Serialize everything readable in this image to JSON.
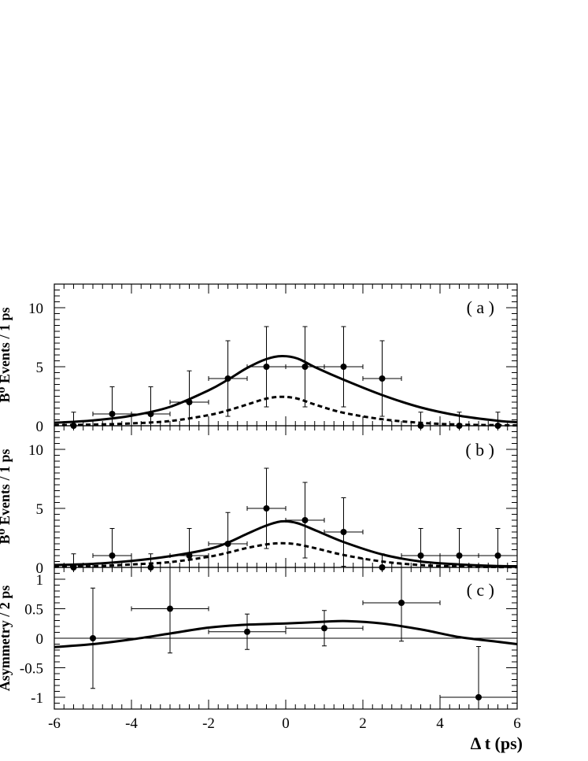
{
  "chart_data": [
    {
      "type": "scatter",
      "panel_label": "( a )",
      "ylabel": "B⁰ Events / 1 ps",
      "xlim": [
        -6,
        6
      ],
      "ylim": [
        0,
        12
      ],
      "yticks": [
        "0",
        "5",
        "10"
      ],
      "points": [
        {
          "x": -5.5,
          "y": 0,
          "xerr": 0.5,
          "yerr": 1.15
        },
        {
          "x": -4.5,
          "y": 1,
          "xerr": 0.5,
          "yerr": 2.3
        },
        {
          "x": -3.5,
          "y": 1,
          "xerr": 0.5,
          "yerr": 2.3
        },
        {
          "x": -2.5,
          "y": 2,
          "xerr": 0.5,
          "yerr": 2.65
        },
        {
          "x": -1.5,
          "y": 4,
          "xerr": 0.5,
          "yerr": 3.2
        },
        {
          "x": -0.5,
          "y": 5,
          "xerr": 0.5,
          "yerr": 3.4
        },
        {
          "x": 0.5,
          "y": 5,
          "xerr": 0.5,
          "yerr": 3.4
        },
        {
          "x": 1.5,
          "y": 5,
          "xerr": 0.5,
          "yerr": 3.4
        },
        {
          "x": 2.5,
          "y": 4,
          "xerr": 0.5,
          "yerr": 3.2
        },
        {
          "x": 3.5,
          "y": 0,
          "xerr": 0.5,
          "yerr": 1.15
        },
        {
          "x": 4.5,
          "y": 0,
          "xerr": 0.5,
          "yerr": 1.15
        },
        {
          "x": 5.5,
          "y": 0,
          "xerr": 0.5,
          "yerr": 1.15
        }
      ],
      "solid_curve": {
        "x": [
          -6,
          -5,
          -4,
          -3,
          -2,
          -1.5,
          -1,
          -0.5,
          -0.1,
          0.3,
          0.8,
          1.5,
          2.5,
          3.5,
          4.5,
          5.5,
          6
        ],
        "y": [
          0.25,
          0.45,
          0.85,
          1.6,
          3.0,
          3.9,
          4.9,
          5.65,
          5.9,
          5.7,
          4.9,
          3.9,
          2.6,
          1.55,
          0.85,
          0.42,
          0.3
        ]
      },
      "dashed_curve": {
        "x": [
          -6,
          -5,
          -4,
          -3,
          -2,
          -1.5,
          -1,
          -0.5,
          -0.1,
          0.3,
          0.8,
          1.5,
          2.5,
          3.5,
          4.5,
          5.5,
          6
        ],
        "y": [
          0.05,
          0.1,
          0.2,
          0.4,
          0.9,
          1.3,
          1.8,
          2.3,
          2.45,
          2.3,
          1.75,
          1.1,
          0.55,
          0.25,
          0.1,
          0.05,
          0.03
        ]
      }
    },
    {
      "type": "scatter",
      "panel_label": "( b )",
      "ylabel": "B̄⁰ Events / 1 ps",
      "xlim": [
        -6,
        6
      ],
      "ylim": [
        0,
        12
      ],
      "yticks": [
        "0",
        "5",
        "10"
      ],
      "points": [
        {
          "x": -5.5,
          "y": 0,
          "xerr": 0.5,
          "yerr": 1.15
        },
        {
          "x": -4.5,
          "y": 1,
          "xerr": 0.5,
          "yerr": 2.3
        },
        {
          "x": -3.5,
          "y": 0,
          "xerr": 0.5,
          "yerr": 1.15
        },
        {
          "x": -2.5,
          "y": 1,
          "xerr": 0.5,
          "yerr": 2.3
        },
        {
          "x": -1.5,
          "y": 2,
          "xerr": 0.5,
          "yerr": 2.65
        },
        {
          "x": -0.5,
          "y": 5,
          "xerr": 0.5,
          "yerr": 3.4
        },
        {
          "x": 0.5,
          "y": 4,
          "xerr": 0.5,
          "yerr": 3.2
        },
        {
          "x": 1.5,
          "y": 3,
          "xerr": 0.5,
          "yerr": 2.9
        },
        {
          "x": 2.5,
          "y": 0,
          "xerr": 0.5,
          "yerr": 1.15
        },
        {
          "x": 3.5,
          "y": 1,
          "xerr": 0.5,
          "yerr": 2.3
        },
        {
          "x": 4.5,
          "y": 1,
          "xerr": 0.5,
          "yerr": 2.3
        },
        {
          "x": 5.5,
          "y": 1,
          "xerr": 0.5,
          "yerr": 2.3
        }
      ],
      "solid_curve": {
        "x": [
          -6,
          -5,
          -4,
          -3,
          -2,
          -1.5,
          -1,
          -0.5,
          -0.1,
          0.3,
          0.8,
          1.5,
          2.5,
          3.5,
          4.5,
          5.5,
          6
        ],
        "y": [
          0.2,
          0.3,
          0.55,
          0.95,
          1.55,
          2.1,
          2.85,
          3.55,
          3.9,
          3.75,
          3.1,
          2.15,
          1.1,
          0.5,
          0.25,
          0.12,
          0.1
        ]
      },
      "dashed_curve": {
        "x": [
          -6,
          -5,
          -4,
          -3,
          -2,
          -1.5,
          -1,
          -0.5,
          -0.1,
          0.3,
          0.8,
          1.5,
          2.5,
          3.5,
          4.5,
          5.5,
          6
        ],
        "y": [
          0.05,
          0.1,
          0.25,
          0.45,
          0.9,
          1.25,
          1.65,
          1.95,
          2.05,
          1.95,
          1.6,
          1.05,
          0.5,
          0.2,
          0.08,
          0.03,
          0.02
        ]
      }
    },
    {
      "type": "scatter",
      "panel_label": "( c )",
      "ylabel": "Asymmetry / 2 ps",
      "xlabel": "Δ t (ps)",
      "xlim": [
        -6,
        6
      ],
      "ylim": [
        -1.2,
        1.2
      ],
      "yticks": [
        "-1",
        "-0.5",
        "0",
        "0.5",
        "1"
      ],
      "xticks": [
        "-6",
        "-4",
        "-2",
        "0",
        "2",
        "4",
        "6"
      ],
      "points": [
        {
          "x": -5,
          "y": 0,
          "xerr": 0,
          "yerr": 0.85
        },
        {
          "x": -3,
          "y": 0.5,
          "xerr": 1,
          "yerr": 0.75
        },
        {
          "x": -1,
          "y": 0.11,
          "xerr": 1,
          "yerr": 0.3
        },
        {
          "x": 1,
          "y": 0.17,
          "xerr": 1,
          "yerr": 0.3
        },
        {
          "x": 3,
          "y": 0.6,
          "xerr": 1,
          "yerr": 0.65
        },
        {
          "x": 5,
          "y": -1,
          "xerr": 1,
          "yerr": 0.86
        }
      ],
      "solid_curve": {
        "x": [
          -6,
          -5,
          -4,
          -3,
          -2,
          -1,
          0,
          1,
          1.6,
          2.5,
          3.5,
          4.5,
          5.5,
          6
        ],
        "y": [
          -0.15,
          -0.1,
          -0.02,
          0.08,
          0.18,
          0.23,
          0.25,
          0.28,
          0.29,
          0.25,
          0.15,
          0.02,
          -0.06,
          -0.1
        ]
      },
      "zero_line": 0
    }
  ]
}
